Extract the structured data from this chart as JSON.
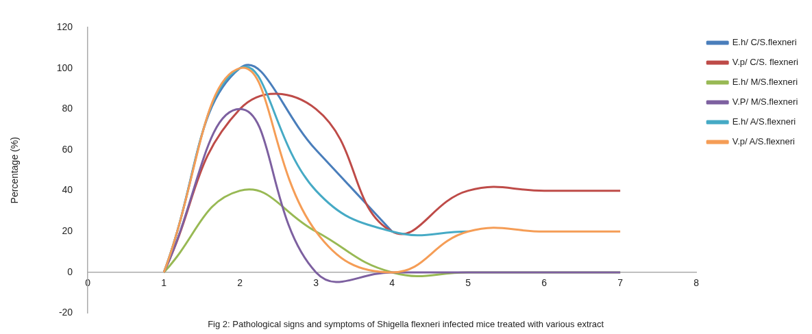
{
  "chart_data": {
    "type": "line",
    "ylabel": "Percentage (%)",
    "annotations": [
      "Fig 2: Pathological signs and symptoms of Shigella flexneri infected mice treated with various extract"
    ],
    "x": [
      1,
      2,
      3,
      4,
      5,
      6,
      7
    ],
    "xlim": [
      0,
      8
    ],
    "xticks": [
      0,
      1,
      2,
      3,
      4,
      5,
      6,
      7,
      8
    ],
    "ylim": [
      -20,
      120
    ],
    "yticks": [
      -20,
      0,
      20,
      40,
      60,
      80,
      100,
      120
    ],
    "grid": false,
    "legend": "top right",
    "marker": "none",
    "line_style": "solid",
    "series": [
      {
        "name": "E.h/ C/S.flexneri",
        "color": "#4a7ebb",
        "values": [
          0,
          100,
          60,
          20,
          null,
          null,
          null
        ]
      },
      {
        "name": "V.p/ C/S. flexneri",
        "color": "#be4b48",
        "values": [
          0,
          80,
          80,
          20,
          40,
          40,
          40
        ]
      },
      {
        "name": "E.h/ M/S.flexneri",
        "color": "#98b954",
        "values": [
          0,
          40,
          20,
          0,
          0,
          0,
          0
        ]
      },
      {
        "name": "V.P/ M/S.flexneri",
        "color": "#7d60a0",
        "values": [
          0,
          80,
          0,
          0,
          0,
          0,
          0
        ]
      },
      {
        "name": "E.h/ A/S.flexneri",
        "color": "#46aac5",
        "values": [
          0,
          100,
          40,
          20,
          20,
          null,
          null
        ]
      },
      {
        "name": "V.p/ A/S.flexneri",
        "color": "#f59d56",
        "values": [
          0,
          100,
          20,
          0,
          20,
          20,
          20
        ]
      }
    ]
  }
}
